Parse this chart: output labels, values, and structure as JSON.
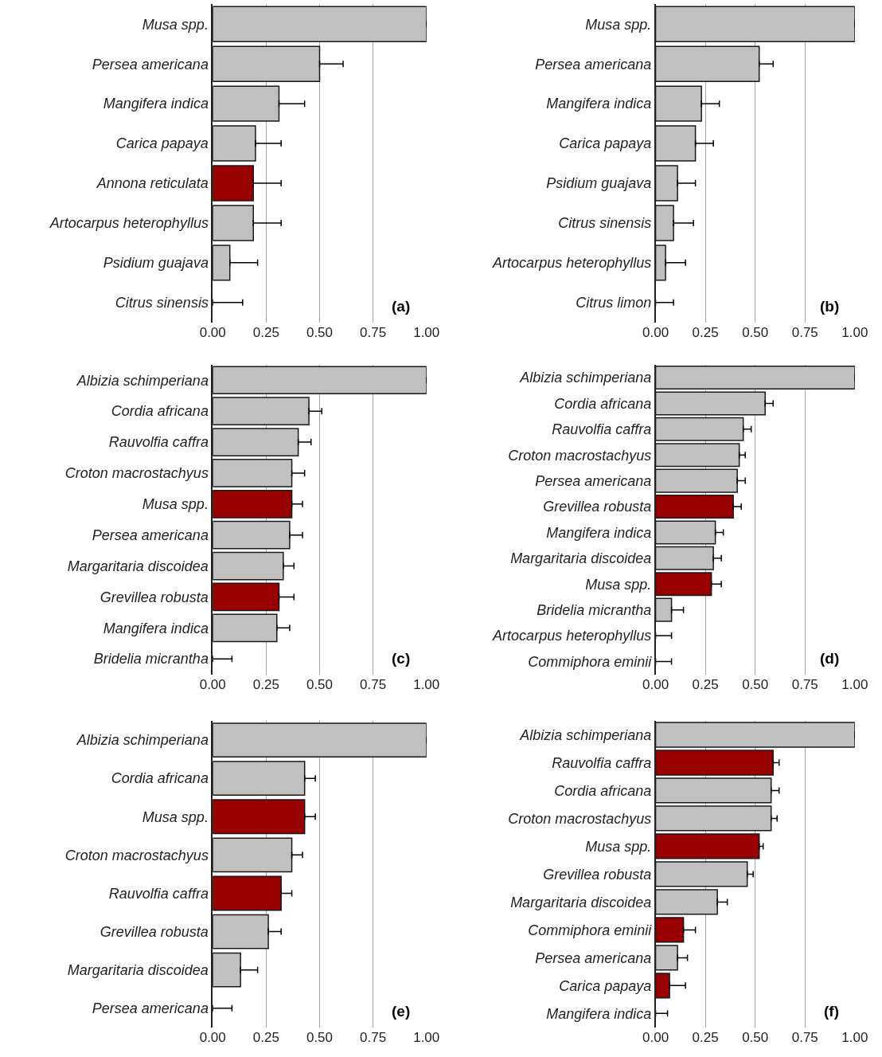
{
  "chart_data": [
    {
      "type": "bar",
      "orientation": "horizontal",
      "annotations": [
        "(a)"
      ],
      "grid": "x",
      "xlim": [
        0,
        1
      ],
      "xticks": [
        {
          "value": 0,
          "label": "0.00"
        },
        {
          "value": 0.25,
          "label": "0.25"
        },
        {
          "value": 0.5,
          "label": "0.50"
        },
        {
          "value": 0.75,
          "label": "0.75"
        },
        {
          "value": 1,
          "label": "1.00"
        }
      ],
      "categories": [
        "Musa spp.",
        "Persea americana",
        "Mangifera indica",
        "Carica papaya",
        "Annona reticulata",
        "Artocarpus heterophyllus",
        "Psidium guajava",
        "Citrus sinensis"
      ],
      "values": [
        1,
        0.5,
        0.31,
        0.2,
        0.19,
        0.19,
        0.08,
        0
      ],
      "errors": [
        null,
        [
          0.5,
          0.61
        ],
        [
          0.31,
          0.43
        ],
        [
          0.2,
          0.32
        ],
        [
          0.19,
          0.32
        ],
        [
          0.19,
          0.32
        ],
        [
          0.08,
          0.21
        ],
        [
          0,
          0.14
        ]
      ],
      "colors": [
        "#c0c0c0",
        "#c0c0c0",
        "#c0c0c0",
        "#c0c0c0",
        "#990000",
        "#c0c0c0",
        "#c0c0c0",
        "#c0c0c0"
      ]
    },
    {
      "type": "bar",
      "orientation": "horizontal",
      "annotations": [
        "(b)"
      ],
      "grid": "x",
      "xlim": [
        0,
        1
      ],
      "xticks": [
        {
          "value": 0,
          "label": "0.00"
        },
        {
          "value": 0.25,
          "label": "0.25"
        },
        {
          "value": 0.5,
          "label": "0.50"
        },
        {
          "value": 0.75,
          "label": "0.75"
        },
        {
          "value": 1,
          "label": "1.00"
        }
      ],
      "categories": [
        "Musa spp.",
        "Persea americana",
        "Mangifera indica",
        "Carica papaya",
        "Psidium guajava",
        "Citrus sinensis",
        "Artocarpus heterophyllus",
        "Citrus limon"
      ],
      "values": [
        1,
        0.52,
        0.23,
        0.2,
        0.11,
        0.09,
        0.05,
        0
      ],
      "errors": [
        null,
        [
          0.52,
          0.59
        ],
        [
          0.23,
          0.32
        ],
        [
          0.2,
          0.29
        ],
        [
          0.11,
          0.2
        ],
        [
          0.09,
          0.19
        ],
        [
          0.05,
          0.15
        ],
        [
          0,
          0.09
        ]
      ],
      "colors": [
        "#c0c0c0",
        "#c0c0c0",
        "#c0c0c0",
        "#c0c0c0",
        "#c0c0c0",
        "#c0c0c0",
        "#c0c0c0",
        "#c0c0c0"
      ]
    },
    {
      "type": "bar",
      "orientation": "horizontal",
      "annotations": [
        "(c)"
      ],
      "grid": "x",
      "xlim": [
        0,
        1
      ],
      "xticks": [
        {
          "value": 0,
          "label": "0.00"
        },
        {
          "value": 0.25,
          "label": "0.25"
        },
        {
          "value": 0.5,
          "label": "0.50"
        },
        {
          "value": 0.75,
          "label": "0.75"
        },
        {
          "value": 1,
          "label": "1.00"
        }
      ],
      "categories": [
        "Albizia schimperiana",
        "Cordia africana",
        "Rauvolfia caffra",
        "Croton macrostachyus",
        "Musa spp.",
        "Persea americana",
        "Margaritaria discoidea",
        "Grevillea robusta",
        "Mangifera indica",
        "Bridelia micrantha"
      ],
      "values": [
        1,
        0.45,
        0.4,
        0.37,
        0.37,
        0.36,
        0.33,
        0.31,
        0.3,
        0
      ],
      "errors": [
        null,
        [
          0.45,
          0.51
        ],
        [
          0.4,
          0.46
        ],
        [
          0.37,
          0.43
        ],
        [
          0.37,
          0.42
        ],
        [
          0.36,
          0.42
        ],
        [
          0.33,
          0.38
        ],
        [
          0.31,
          0.38
        ],
        [
          0.3,
          0.36
        ],
        [
          0,
          0.09
        ]
      ],
      "colors": [
        "#c0c0c0",
        "#c0c0c0",
        "#c0c0c0",
        "#c0c0c0",
        "#990000",
        "#c0c0c0",
        "#c0c0c0",
        "#990000",
        "#c0c0c0",
        "#c0c0c0"
      ]
    },
    {
      "type": "bar",
      "orientation": "horizontal",
      "annotations": [
        "(d)"
      ],
      "grid": "x",
      "xlim": [
        0,
        1
      ],
      "xticks": [
        {
          "value": 0,
          "label": "0.00"
        },
        {
          "value": 0.25,
          "label": "0.25"
        },
        {
          "value": 0.5,
          "label": "0.50"
        },
        {
          "value": 0.75,
          "label": "0.75"
        },
        {
          "value": 1,
          "label": "1.00"
        }
      ],
      "categories": [
        "Albizia schimperiana",
        "Cordia africana",
        "Rauvolfia caffra",
        "Croton macrostachyus",
        "Persea americana",
        "Grevillea robusta",
        "Mangifera indica",
        "Margaritaria discoidea",
        "Musa spp.",
        "Bridelia micrantha",
        "Artocarpus heterophyllus",
        "Commiphora eminii"
      ],
      "values": [
        1,
        0.55,
        0.44,
        0.42,
        0.41,
        0.39,
        0.3,
        0.29,
        0.28,
        0.08,
        0,
        0
      ],
      "errors": [
        null,
        [
          0.55,
          0.59
        ],
        [
          0.44,
          0.48
        ],
        [
          0.42,
          0.45
        ],
        [
          0.41,
          0.45
        ],
        [
          0.39,
          0.43
        ],
        [
          0.3,
          0.34
        ],
        [
          0.29,
          0.33
        ],
        [
          0.28,
          0.33
        ],
        [
          0.08,
          0.14
        ],
        [
          0,
          0.08
        ],
        [
          0,
          0.08
        ]
      ],
      "colors": [
        "#c0c0c0",
        "#c0c0c0",
        "#c0c0c0",
        "#c0c0c0",
        "#c0c0c0",
        "#990000",
        "#c0c0c0",
        "#c0c0c0",
        "#990000",
        "#c0c0c0",
        "#c0c0c0",
        "#c0c0c0"
      ]
    },
    {
      "type": "bar",
      "orientation": "horizontal",
      "annotations": [
        "(e)"
      ],
      "grid": "x",
      "xlim": [
        0,
        1
      ],
      "xticks": [
        {
          "value": 0,
          "label": "0.00"
        },
        {
          "value": 0.25,
          "label": "0.25"
        },
        {
          "value": 0.5,
          "label": "0.50"
        },
        {
          "value": 0.75,
          "label": "0.75"
        },
        {
          "value": 1,
          "label": "1.00"
        }
      ],
      "categories": [
        "Albizia schimperiana",
        "Cordia africana",
        "Musa spp.",
        "Croton macrostachyus",
        "Rauvolfia caffra",
        "Grevillea robusta",
        "Margaritaria discoidea",
        "Persea americana"
      ],
      "values": [
        1,
        0.43,
        0.43,
        0.37,
        0.32,
        0.26,
        0.13,
        0
      ],
      "errors": [
        null,
        [
          0.43,
          0.48
        ],
        [
          0.43,
          0.48
        ],
        [
          0.37,
          0.42
        ],
        [
          0.32,
          0.37
        ],
        [
          0.26,
          0.32
        ],
        [
          0.13,
          0.21
        ],
        [
          0,
          0.09
        ]
      ],
      "colors": [
        "#c0c0c0",
        "#c0c0c0",
        "#990000",
        "#c0c0c0",
        "#990000",
        "#c0c0c0",
        "#c0c0c0",
        "#c0c0c0"
      ]
    },
    {
      "type": "bar",
      "orientation": "horizontal",
      "annotations": [
        "(f)"
      ],
      "grid": "x",
      "xlim": [
        0,
        1
      ],
      "xticks": [
        {
          "value": 0,
          "label": "0.00"
        },
        {
          "value": 0.25,
          "label": "0.25"
        },
        {
          "value": 0.5,
          "label": "0.50"
        },
        {
          "value": 0.75,
          "label": "0.75"
        },
        {
          "value": 1,
          "label": "1.00"
        }
      ],
      "categories": [
        "Albizia schimperiana",
        "Rauvolfia caffra",
        "Cordia africana",
        "Croton macrostachyus",
        "Musa spp.",
        "Grevillea robusta",
        "Margaritaria discoidea",
        "Commiphora eminii",
        "Persea americana",
        "Carica papaya",
        "Mangifera indica"
      ],
      "values": [
        1,
        0.59,
        0.58,
        0.58,
        0.52,
        0.46,
        0.31,
        0.14,
        0.11,
        0.07,
        0
      ],
      "errors": [
        null,
        [
          0.59,
          0.62
        ],
        [
          0.58,
          0.62
        ],
        [
          0.58,
          0.61
        ],
        [
          0.52,
          0.54
        ],
        [
          0.46,
          0.49
        ],
        [
          0.31,
          0.36
        ],
        [
          0.14,
          0.2
        ],
        [
          0.11,
          0.16
        ],
        [
          0.07,
          0.15
        ],
        [
          0,
          0.06
        ]
      ],
      "colors": [
        "#c0c0c0",
        "#990000",
        "#c0c0c0",
        "#c0c0c0",
        "#990000",
        "#c0c0c0",
        "#c0c0c0",
        "#990000",
        "#c0c0c0",
        "#990000",
        "#c0c0c0"
      ]
    }
  ]
}
